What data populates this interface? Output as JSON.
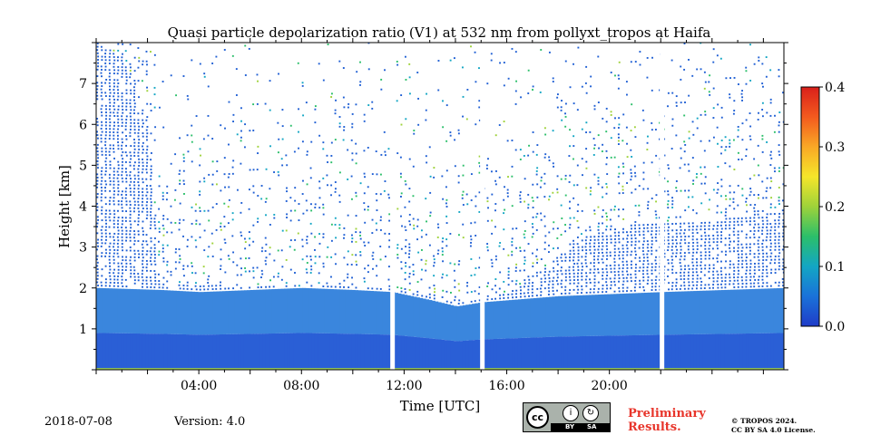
{
  "chart_data": {
    "type": "heatmap",
    "title": "Quasi particle depolarization ratio (V1) at 532 nm from pollyxt_tropos at Haifa",
    "xlabel": "Time [UTC]",
    "ylabel": "Height [km]",
    "xlim": [
      0,
      26.8
    ],
    "ylim": [
      0,
      8.0
    ],
    "x_ticks": [
      4,
      8,
      12,
      16,
      20
    ],
    "x_tick_labels": [
      "04:00",
      "08:00",
      "12:00",
      "16:00",
      "20:00"
    ],
    "y_ticks": [
      1,
      2,
      3,
      4,
      5,
      6,
      7
    ],
    "y_tick_labels": [
      "1",
      "2",
      "3",
      "4",
      "5",
      "6",
      "7"
    ],
    "colorbar": {
      "range": [
        0.0,
        0.4
      ],
      "ticks": [
        0.0,
        0.1,
        0.2,
        0.3,
        0.4
      ],
      "tick_labels": [
        "0.0",
        "0.1",
        "0.2",
        "0.3",
        "0.4"
      ],
      "colormap": [
        "#1f3cc8",
        "#1a72d9",
        "#13a6c4",
        "#2bbf6a",
        "#9ed23a",
        "#f5e62a",
        "#f9a826",
        "#f35a1e",
        "#d9201b"
      ]
    },
    "colors": {
      "boundary_layer": "#2a5fd6",
      "boundary_layer_upper": "#3a86dd",
      "sparse_low": "#1f5fd4",
      "sparse_high": "#9ccf3a",
      "surface_strip": "#a6d64a"
    },
    "data_gaps_hours": [
      11.55,
      15.05,
      22.05
    ],
    "mixing_layer_top_km": [
      [
        0,
        2.0
      ],
      [
        2.5,
        1.95
      ],
      [
        4,
        1.9
      ],
      [
        6,
        1.95
      ],
      [
        8,
        2.0
      ],
      [
        10,
        1.95
      ],
      [
        11.5,
        1.9
      ],
      [
        13,
        1.7
      ],
      [
        14.0,
        1.55
      ],
      [
        15,
        1.65
      ],
      [
        16,
        1.7
      ],
      [
        17,
        1.75
      ],
      [
        18,
        1.8
      ],
      [
        20,
        1.85
      ],
      [
        22,
        1.9
      ],
      [
        26.8,
        2.0
      ]
    ],
    "dense_aerosol_top_km": [
      [
        0,
        7.9
      ],
      [
        1,
        7.6
      ],
      [
        2,
        6.0
      ],
      [
        2.4,
        2.3
      ],
      [
        3,
        2.05
      ],
      [
        11.5,
        1.95
      ],
      [
        14,
        1.6
      ],
      [
        16,
        1.8
      ],
      [
        17.5,
        2.5
      ],
      [
        19,
        3.2
      ],
      [
        21,
        3.5
      ],
      [
        24,
        3.6
      ],
      [
        26.8,
        3.8
      ]
    ]
  },
  "footer": {
    "date": "2018-07-08",
    "version": "Version: 4.0",
    "preliminary_line1": "Preliminary",
    "preliminary_line2": "Results.",
    "copyright_line1": "© TROPOS 2024.",
    "copyright_line2": "CC BY SA 4.0 License.",
    "cc_label": "cc",
    "cc_by": "BY",
    "cc_sa": "SA"
  }
}
